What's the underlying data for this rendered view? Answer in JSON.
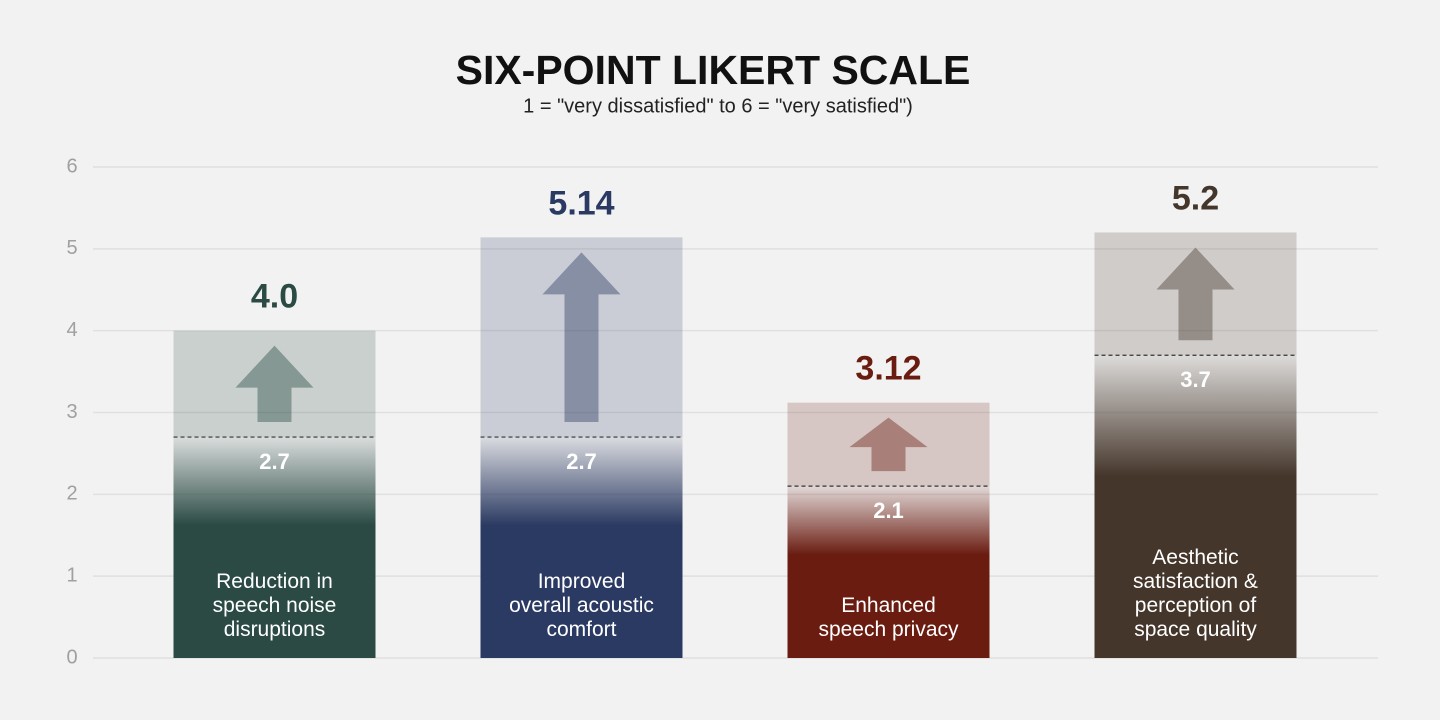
{
  "chart_data": {
    "type": "bar",
    "title": "SIX-POINT LIKERT SCALE",
    "subtitle": "1 = \"very dissatisfied\" to 6 = \"very satisfied\")",
    "categories": [
      "Reduction in\nspeech noise\ndisruptions",
      "Improved\noverall acoustic\ncomfort",
      "Enhanced\nspeech privacy",
      "Aesthetic\nsatisfaction &\nperception of\nspace quality"
    ],
    "colors": [
      "#2a4a43",
      "#2b3a62",
      "#6a1c11",
      "#45362b"
    ],
    "series": [
      {
        "values": [
          2.7,
          2.7,
          2.1,
          3.7
        ]
      },
      {
        "values": [
          4.0,
          5.14,
          3.12,
          5.2
        ],
        "value_labels": [
          "4.0",
          "5.14",
          "3.12",
          "5.2"
        ]
      }
    ],
    "ylim": [
      0,
      6
    ],
    "yticks": [
      0,
      1,
      2,
      3,
      4,
      5,
      6
    ],
    "grid": true
  }
}
